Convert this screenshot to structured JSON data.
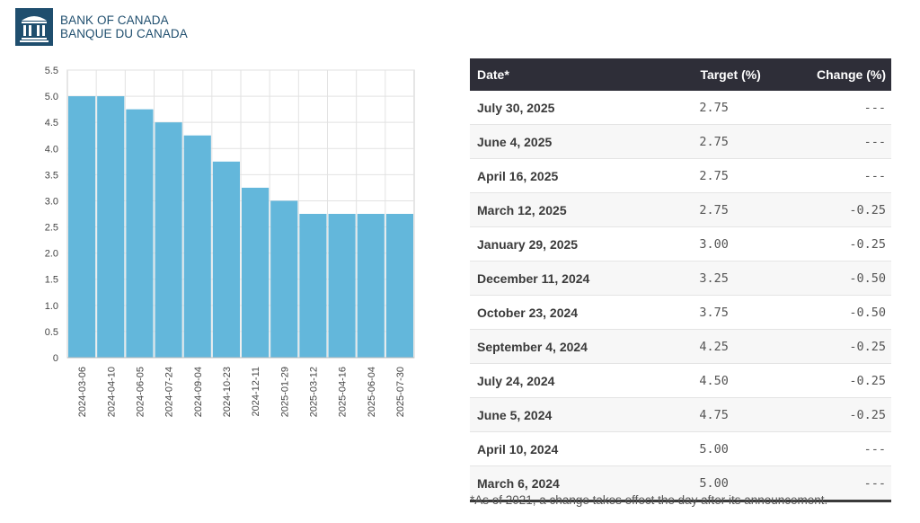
{
  "brand": {
    "name_en": "BANK OF CANADA",
    "name_fr": "BANQUE DU CANADA",
    "color": "#1f4e6e"
  },
  "chart_data": {
    "type": "bar",
    "categories": [
      "2024-03-06",
      "2024-04-10",
      "2024-06-05",
      "2024-07-24",
      "2024-09-04",
      "2024-10-23",
      "2024-12-11",
      "2025-01-29",
      "2025-03-12",
      "2025-04-16",
      "2025-06-04",
      "2025-07-30"
    ],
    "values": [
      5.0,
      5.0,
      4.75,
      4.5,
      4.25,
      3.75,
      3.25,
      3.0,
      2.75,
      2.75,
      2.75,
      2.75
    ],
    "yticks": [
      "0",
      "0.5",
      "1.0",
      "1.5",
      "2.0",
      "2.5",
      "3.0",
      "3.5",
      "4.0",
      "4.5",
      "5.0",
      "5.5"
    ],
    "ylim": [
      0,
      5.5
    ],
    "grid": true,
    "title": "",
    "xlabel": "",
    "ylabel": "",
    "bar_color": "#63b7db"
  },
  "table": {
    "headers": {
      "date": "Date*",
      "target": "Target (%)",
      "change": "Change (%)"
    },
    "rows": [
      {
        "date": "July 30, 2025",
        "target": "2.75",
        "change": "---"
      },
      {
        "date": "June 4, 2025",
        "target": "2.75",
        "change": "---"
      },
      {
        "date": "April 16, 2025",
        "target": "2.75",
        "change": "---"
      },
      {
        "date": "March 12, 2025",
        "target": "2.75",
        "change": "-0.25"
      },
      {
        "date": "January 29, 2025",
        "target": "3.00",
        "change": "-0.25"
      },
      {
        "date": "December 11, 2024",
        "target": "3.25",
        "change": "-0.50"
      },
      {
        "date": "October 23, 2024",
        "target": "3.75",
        "change": "-0.50"
      },
      {
        "date": "September 4, 2024",
        "target": "4.25",
        "change": "-0.25"
      },
      {
        "date": "July 24, 2024",
        "target": "4.50",
        "change": "-0.25"
      },
      {
        "date": "June 5, 2024",
        "target": "4.75",
        "change": "-0.25"
      },
      {
        "date": "April 10, 2024",
        "target": "5.00",
        "change": "---"
      },
      {
        "date": "March 6, 2024",
        "target": "5.00",
        "change": "---"
      }
    ]
  },
  "footnote": "*As of 2021, a change takes effect the day after its announcement."
}
